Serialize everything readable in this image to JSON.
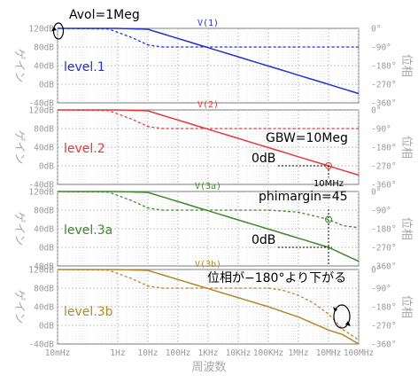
{
  "chart_data": {
    "type": "line",
    "xlabel": "周波数",
    "x_scale": "log",
    "x_ticks": [
      "10mHz",
      "1Hz",
      "10Hz",
      "100Hz",
      "1KHz",
      "10KHz",
      "100KHz",
      "1MHz",
      "10MHz",
      "100MHz"
    ],
    "x_tick_values": [
      0.01,
      1,
      10,
      100,
      1000,
      10000,
      100000,
      1000000,
      10000000,
      100000000
    ],
    "xlim": [
      0.01,
      100000000
    ],
    "ylabel_left": "ゲイン",
    "ylabel_right": "位相",
    "gain_ticks": [
      "120dB",
      "80dB",
      "40dB",
      "0dB",
      "-40dB"
    ],
    "gain_ylim": [
      -40,
      120
    ],
    "phase_ticks": [
      "0°",
      "-90°",
      "-180°",
      "-270°",
      "-360°"
    ],
    "phase_ylim": [
      -360,
      0
    ],
    "grid": true,
    "line_styles": {
      "gain": "solid",
      "phase": "dashed"
    },
    "panels": [
      {
        "title": "V(1)",
        "name": "level.1",
        "color": "#2233cc",
        "gain": {
          "x": [
            0.01,
            1,
            10,
            100000000
          ],
          "y": [
            120,
            120,
            118,
            -20
          ]
        },
        "phase": {
          "x": [
            0.01,
            0.5,
            3,
            10,
            30,
            1000,
            100000000
          ],
          "y": [
            0,
            -3,
            -45,
            -80,
            -90,
            -90,
            -90
          ]
        },
        "annotations": [
          {
            "text": "Avol=1Meg"
          }
        ]
      },
      {
        "title": "V(2)",
        "name": "level.2",
        "color": "#e03c3c",
        "gain": {
          "x": [
            0.01,
            1,
            10,
            100000000
          ],
          "y": [
            120,
            120,
            118,
            -20
          ]
        },
        "phase": {
          "x": [
            0.01,
            0.5,
            3,
            10,
            30,
            100000000
          ],
          "y": [
            0,
            -3,
            -45,
            -80,
            -90,
            -90
          ]
        },
        "annotations": [
          {
            "text": "GBW=10Meg"
          },
          {
            "text": "0dB"
          }
        ],
        "markers": [
          {
            "label": "10MHz",
            "x": 10000000,
            "gain": 0
          }
        ]
      },
      {
        "title": "V(3a)",
        "name": "level.3a",
        "color": "#3c8a2a",
        "gain": {
          "x": [
            0.01,
            1,
            10,
            10000000,
            100000000
          ],
          "y": [
            120,
            120,
            118,
            0,
            -30
          ]
        },
        "phase": {
          "x": [
            0.01,
            0.5,
            3,
            10,
            30,
            100000,
            1000000,
            10000000,
            30000000,
            100000000
          ],
          "y": [
            0,
            -3,
            -45,
            -80,
            -90,
            -90,
            -100,
            -135,
            -165,
            -175
          ]
        },
        "annotations": [
          {
            "text": "phimargin=45"
          },
          {
            "text": "0dB"
          }
        ],
        "markers": [
          {
            "x": 10000000,
            "gain": 0,
            "phase": -135
          }
        ]
      },
      {
        "title": "V(3b)",
        "name": "level.3b",
        "color": "#b8862a",
        "gain": {
          "x": [
            0.01,
            1,
            10,
            100000,
            1000000,
            10000000,
            30000000,
            100000000
          ],
          "y": [
            120,
            120,
            118,
            40,
            18,
            -10,
            -20,
            -40
          ]
        },
        "phase": {
          "x": [
            0.01,
            0.5,
            3,
            10,
            30,
            100000,
            300000,
            1000000,
            3000000,
            10000000,
            30000000,
            100000000
          ],
          "y": [
            0,
            -3,
            -45,
            -80,
            -90,
            -90,
            -100,
            -125,
            -160,
            -215,
            -290,
            -340
          ]
        },
        "annotations": [
          {
            "text": "位相が−180°より下がる"
          }
        ]
      }
    ]
  }
}
